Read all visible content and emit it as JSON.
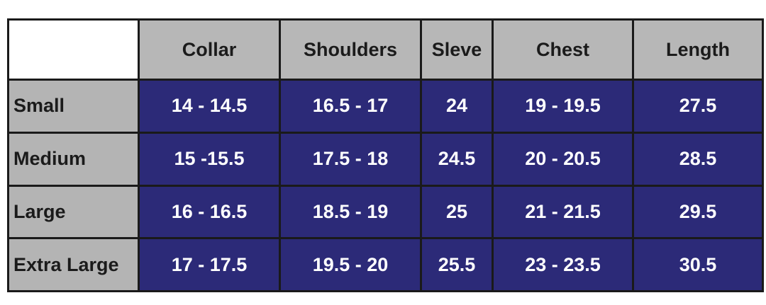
{
  "table": {
    "columns": [
      "Collar",
      "Shoulders",
      "Sleve",
      "Chest",
      "Length"
    ],
    "rows": [
      {
        "label": "Small",
        "values": [
          "14 - 14.5",
          "16.5 - 17",
          "24",
          "19 - 19.5",
          "27.5"
        ]
      },
      {
        "label": "Medium",
        "values": [
          "15 -15.5",
          "17.5 - 18",
          "24.5",
          "20 - 20.5",
          "28.5"
        ]
      },
      {
        "label": "Large",
        "values": [
          "16 - 16.5",
          "18.5 - 19",
          "25",
          "21 - 21.5",
          "29.5"
        ]
      },
      {
        "label": "Extra Large",
        "values": [
          "17 - 17.5",
          "19.5 - 20",
          "25.5",
          "23 - 23.5",
          "30.5"
        ]
      }
    ]
  },
  "colors": {
    "header_bg": "#b7b7b7",
    "cell_bg": "#2c2a78",
    "cell_text": "#ffffff",
    "border": "#1a1a1a"
  }
}
